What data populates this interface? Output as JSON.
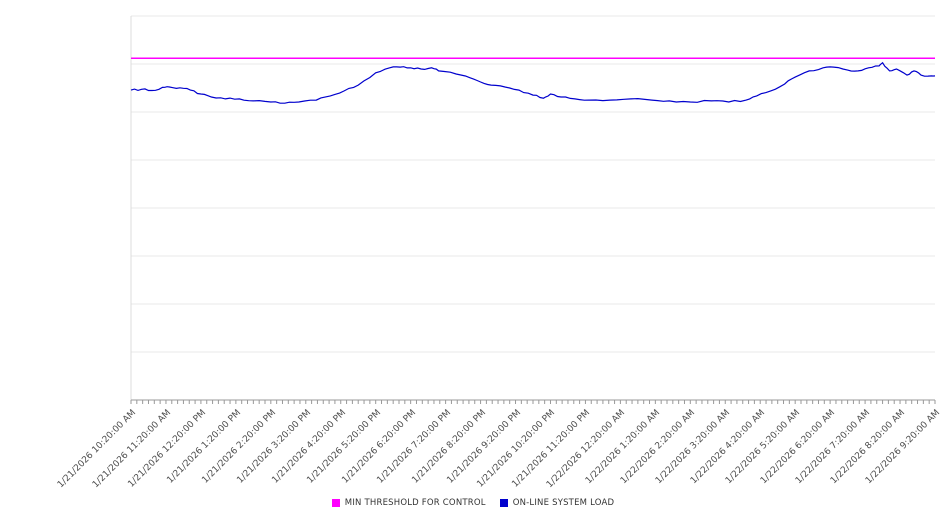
{
  "chart_data": {
    "type": "line",
    "title": "",
    "xlabel": "",
    "ylabel": "",
    "ylim": [
      0,
      100
    ],
    "horizontal_gridlines": 8,
    "grid": "on",
    "legend_position": "bottom-center",
    "x_range_hours": [
      0,
      23
    ],
    "minor_ticks_per_hour": 6,
    "x_tick_labels": [
      "1/21/2026 10:20:00 AM",
      "1/21/2026 11:20:00 AM",
      "1/21/2026 12:20:00 PM",
      "1/21/2026 1:20:00 PM",
      "1/21/2026 2:20:00 PM",
      "1/21/2026 3:20:00 PM",
      "1/21/2026 4:20:00 PM",
      "1/21/2026 5:20:00 PM",
      "1/21/2026 6:20:00 PM",
      "1/21/2026 7:20:00 PM",
      "1/21/2026 8:20:00 PM",
      "1/21/2026 9:20:00 PM",
      "1/21/2026 10:20:00 PM",
      "1/21/2026 11:20:00 PM",
      "1/22/2026 12:20:00 AM",
      "1/22/2026 1:20:00 AM",
      "1/22/2026 2:20:00 AM",
      "1/22/2026 3:20:00 AM",
      "1/22/2026 4:20:00 AM",
      "1/22/2026 5:20:00 AM",
      "1/22/2026 6:20:00 AM",
      "1/22/2026 7:20:00 AM",
      "1/22/2026 8:20:00 AM",
      "1/22/2026 9:20:00 AM"
    ],
    "series": [
      {
        "name": "MIN THRESHOLD FOR CONTROL",
        "type": "threshold",
        "color": "#ff00ff",
        "value": 89
      },
      {
        "name": "ON-LINE SYSTEM LOAD",
        "type": "line",
        "color": "#0000cd",
        "x_hours": [
          0.0,
          0.3,
          0.6,
          0.9,
          1.1,
          1.4,
          1.7,
          2.0,
          2.3,
          2.7,
          3.1,
          3.5,
          4.0,
          4.4,
          4.8,
          5.3,
          5.7,
          6.1,
          6.5,
          7.0,
          7.4,
          7.7,
          8.0,
          8.3,
          8.6,
          8.8,
          9.3,
          9.7,
          10.0,
          10.3,
          10.7,
          11.1,
          11.5,
          11.8,
          12.0,
          12.3,
          12.7,
          13.1,
          13.7,
          14.3,
          14.9,
          15.4,
          16.0,
          16.6,
          17.1,
          17.6,
          17.9,
          18.3,
          18.7,
          19.0,
          19.4,
          19.8,
          20.1,
          20.5,
          20.8,
          21.1,
          21.4,
          21.5,
          21.7,
          21.9,
          22.2,
          22.4,
          22.6,
          22.9,
          23.0
        ],
        "values": [
          80.7,
          80.9,
          80.6,
          81.4,
          81.5,
          81.3,
          80.7,
          79.7,
          78.9,
          78.4,
          78.4,
          77.9,
          77.6,
          77.3,
          77.6,
          78.1,
          79.2,
          80.5,
          82.0,
          85.2,
          86.5,
          86.7,
          86.5,
          86.2,
          86.5,
          85.7,
          84.9,
          83.9,
          82.8,
          82.0,
          81.5,
          80.7,
          79.4,
          78.6,
          79.7,
          78.9,
          78.4,
          78.1,
          78.1,
          78.4,
          78.1,
          77.9,
          77.6,
          77.9,
          77.6,
          78.1,
          79.2,
          80.5,
          82.3,
          84.1,
          85.7,
          86.5,
          86.7,
          85.9,
          85.7,
          86.5,
          87.0,
          87.8,
          85.7,
          86.2,
          84.6,
          85.7,
          84.6,
          84.4,
          84.4
        ]
      }
    ],
    "colors": {
      "gridline": "#e8e8e8",
      "axis": "#999999",
      "tick_label": "#4d4d4d",
      "legend_text": "#333333",
      "background": "#ffffff"
    }
  }
}
